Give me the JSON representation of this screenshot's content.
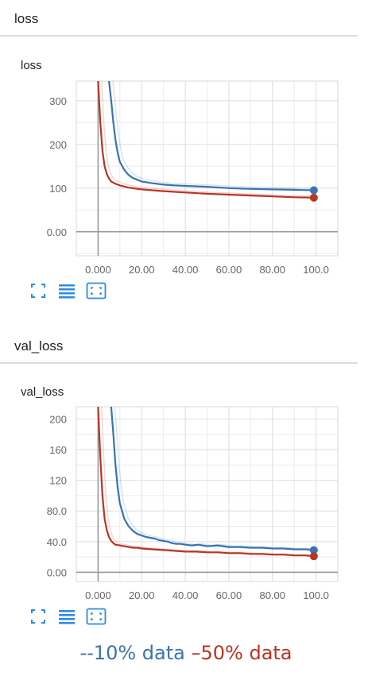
{
  "sections": [
    {
      "header": "loss",
      "title": "loss"
    },
    {
      "header": "val_loss",
      "title": "val_loss"
    }
  ],
  "legend": {
    "items": [
      {
        "label": "--10% data",
        "color": "#3873b3"
      },
      {
        "label": "–50% data",
        "color": "#bb3322"
      }
    ]
  },
  "toolbar_icons": [
    "fit-screen-icon",
    "toggle-log-scale-icon",
    "reset-zoom-icon"
  ],
  "chart_data": [
    {
      "type": "line",
      "title": "loss",
      "xlim": [
        -10,
        110
      ],
      "ylim": [
        -55,
        345
      ],
      "x_ticks": [
        0,
        20,
        40,
        60,
        80,
        100
      ],
      "x_tick_labels": [
        "0.000",
        "20.00",
        "40.00",
        "60.00",
        "80.00",
        "100.0"
      ],
      "y_ticks": [
        0,
        100,
        200,
        300
      ],
      "y_tick_labels": [
        "0.00",
        "100",
        "200",
        "300"
      ],
      "grid": true,
      "series": [
        {
          "color": "#3873b3",
          "x": [
            5,
            6,
            7,
            8,
            9,
            10,
            12,
            14,
            16,
            18,
            20,
            25,
            30,
            35,
            40,
            50,
            60,
            70,
            80,
            90,
            99
          ],
          "y": [
            345,
            300,
            250,
            210,
            180,
            160,
            142,
            130,
            123,
            119,
            115,
            111,
            108,
            106,
            105,
            103,
            100,
            98,
            97,
            96,
            95
          ]
        },
        {
          "color": "#bb3322",
          "x": [
            0,
            1,
            2,
            3,
            4,
            5,
            6,
            8,
            10,
            14,
            20,
            30,
            40,
            50,
            60,
            70,
            80,
            90,
            99
          ],
          "y": [
            345,
            250,
            185,
            150,
            132,
            122,
            115,
            110,
            106,
            101,
            97,
            93,
            90,
            87,
            85,
            83,
            81,
            79,
            78
          ]
        }
      ]
    },
    {
      "type": "line",
      "title": "val_loss",
      "xlim": [
        -10,
        110
      ],
      "ylim": [
        -12,
        216
      ],
      "x_ticks": [
        0,
        20,
        40,
        60,
        80,
        100
      ],
      "x_tick_labels": [
        "0.000",
        "20.00",
        "40.00",
        "60.00",
        "80.00",
        "100.0"
      ],
      "y_ticks": [
        0,
        40,
        80,
        120,
        160,
        200
      ],
      "y_tick_labels": [
        "0.00",
        "40.0",
        "80.0",
        "120",
        "160",
        "200"
      ],
      "grid": true,
      "series": [
        {
          "color": "#3873b3",
          "x": [
            6,
            7,
            8,
            9,
            10,
            12,
            14,
            16,
            18,
            20,
            22,
            24,
            26,
            28,
            30,
            32,
            34,
            36,
            38,
            40,
            43,
            46,
            50,
            55,
            60,
            65,
            70,
            75,
            80,
            85,
            90,
            95,
            99
          ],
          "y": [
            216,
            180,
            140,
            110,
            90,
            70,
            60,
            54,
            50,
            48,
            46,
            45,
            44,
            42,
            41,
            40,
            38,
            37,
            37,
            36,
            35,
            36,
            34,
            35,
            33,
            33,
            32,
            32,
            31,
            31,
            30,
            30,
            29
          ]
        },
        {
          "color": "#bb3322",
          "x": [
            0,
            1,
            2,
            3,
            4,
            5,
            6,
            7,
            8,
            10,
            12,
            14,
            16,
            18,
            20,
            25,
            30,
            35,
            40,
            45,
            50,
            55,
            60,
            65,
            70,
            75,
            80,
            85,
            90,
            95,
            99
          ],
          "y": [
            216,
            150,
            100,
            70,
            55,
            46,
            41,
            38,
            36,
            35,
            34,
            33,
            32,
            32,
            31,
            30,
            29,
            28,
            27,
            27,
            26,
            26,
            25,
            25,
            24,
            24,
            23,
            23,
            22,
            22,
            21
          ]
        }
      ]
    }
  ]
}
